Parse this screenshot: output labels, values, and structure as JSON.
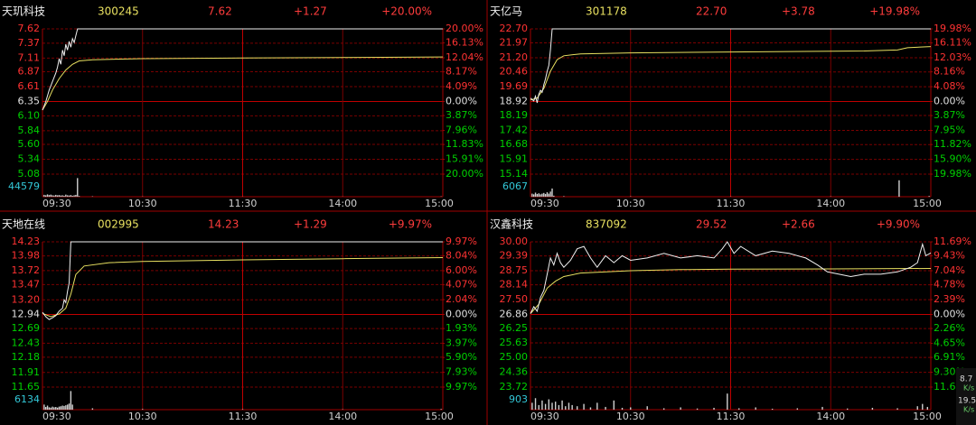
{
  "chart_data": [
    {
      "type": "line",
      "header": {
        "name": "天玑科技",
        "code": "300245",
        "price": "7.62",
        "change": "+1.27",
        "change_pct": "+20.00%"
      },
      "xlim": [
        0,
        240
      ],
      "xticks": [
        {
          "value": 0,
          "label": "09:30"
        },
        {
          "value": 60,
          "label": "10:30"
        },
        {
          "value": 120,
          "label": "11:30"
        },
        {
          "value": 180,
          "label": "14:00"
        },
        {
          "value": 240,
          "label": "15:00"
        }
      ],
      "ylim": [
        5.08,
        7.62
      ],
      "yticks": [
        7.62,
        7.37,
        7.11,
        6.87,
        6.61,
        6.35,
        {
          "value": 6.1,
          "label": "6.10"
        },
        5.84,
        {
          "value": 5.6,
          "label": "5.60"
        },
        5.34,
        5.08
      ],
      "y2lim": [
        -20,
        20
      ],
      "y2ticks": [
        {
          "value": 20,
          "label": "20.00%"
        },
        {
          "value": 16.13,
          "label": "16.13%"
        },
        {
          "value": 12.04,
          "label": "12.04%"
        },
        {
          "value": 8.17,
          "label": "8.17%"
        },
        {
          "value": 4.09,
          "label": "4.09%"
        },
        {
          "value": 0,
          "label": "0.00%"
        },
        {
          "value": -3.87,
          "label": "3.87%"
        },
        {
          "value": -7.96,
          "label": "7.96%"
        },
        {
          "value": -11.83,
          "label": "11.83%"
        },
        {
          "value": -15.91,
          "label": "15.91%"
        },
        {
          "value": -20,
          "label": "20.00%"
        }
      ],
      "price": {
        "color": "#f0f0f0",
        "x": [
          0,
          2,
          4,
          6,
          8,
          9,
          10,
          11,
          12,
          13,
          14,
          15,
          16,
          17,
          18,
          19,
          20,
          21,
          240
        ],
        "values": [
          6.2,
          6.35,
          6.55,
          6.7,
          6.85,
          6.95,
          7.1,
          7.0,
          7.25,
          7.15,
          7.35,
          7.25,
          7.4,
          7.3,
          7.45,
          7.38,
          7.5,
          7.62,
          7.62
        ]
      },
      "average": {
        "color": "#e8e060",
        "x": [
          0,
          3,
          6,
          10,
          14,
          18,
          22,
          30,
          60,
          120,
          180,
          240
        ],
        "values": [
          6.2,
          6.35,
          6.55,
          6.75,
          6.9,
          7.0,
          7.06,
          7.08,
          7.1,
          7.11,
          7.12,
          7.13
        ]
      },
      "volume": {
        "color": "#d0d0d0",
        "ylim": [
          0,
          44579
        ],
        "yticks": [
          44579
        ],
        "x": [
          1,
          2,
          3,
          4,
          5,
          6,
          7,
          8,
          9,
          10,
          11,
          12,
          13,
          14,
          15,
          16,
          17,
          18,
          19,
          20,
          21,
          22,
          30,
          60,
          120,
          180,
          239
        ],
        "values": [
          4000,
          3000,
          5000,
          3500,
          4500,
          3000,
          2500,
          4000,
          3000,
          3500,
          2500,
          3000,
          2000,
          4500,
          3000,
          2500,
          3500,
          2000,
          3000,
          4000,
          40000,
          1500,
          800,
          500,
          400,
          300,
          600
        ]
      }
    },
    {
      "type": "line",
      "header": {
        "name": "天亿马",
        "code": "301178",
        "price": "22.70",
        "change": "+3.78",
        "change_pct": "+19.98%"
      },
      "xlim": [
        0,
        240
      ],
      "xticks": [
        {
          "value": 0,
          "label": "09:30"
        },
        {
          "value": 60,
          "label": "10:30"
        },
        {
          "value": 120,
          "label": "11:30"
        },
        {
          "value": 180,
          "label": "14:00"
        },
        {
          "value": 240,
          "label": "15:00"
        }
      ],
      "ylim": [
        15.14,
        22.7
      ],
      "yticks": [
        {
          "value": 22.7,
          "label": "22.70"
        },
        21.97,
        {
          "value": 21.2,
          "label": "21.20"
        },
        20.46,
        19.69,
        18.92,
        18.19,
        17.42,
        16.68,
        15.91,
        15.14
      ],
      "y2lim": [
        -19.98,
        19.98
      ],
      "y2ticks": [
        {
          "value": 19.98,
          "label": "19.98%"
        },
        {
          "value": 16.11,
          "label": "16.11%"
        },
        {
          "value": 12.03,
          "label": "12.03%"
        },
        {
          "value": 8.16,
          "label": "8.16%"
        },
        {
          "value": 4.08,
          "label": "4.08%"
        },
        {
          "value": 0,
          "label": "0.00%"
        },
        {
          "value": -3.87,
          "label": "3.87%"
        },
        {
          "value": -7.95,
          "label": "7.95%"
        },
        {
          "value": -11.82,
          "label": "11.82%"
        },
        {
          "value": -15.9,
          "label": "15.90%"
        },
        {
          "value": -19.98,
          "label": "19.98%"
        }
      ],
      "price": {
        "color": "#f0f0f0",
        "x": [
          0,
          2,
          3,
          4,
          5,
          6,
          7,
          8,
          9,
          10,
          11,
          12,
          13,
          240
        ],
        "values": [
          19.1,
          18.95,
          19.2,
          18.85,
          19.3,
          19.5,
          19.4,
          19.8,
          20.1,
          20.5,
          20.8,
          21.6,
          22.7,
          22.7
        ]
      },
      "average": {
        "color": "#e8e060",
        "x": [
          0,
          4,
          8,
          12,
          16,
          20,
          30,
          60,
          120,
          200,
          220,
          226,
          240
        ],
        "values": [
          19.0,
          19.1,
          19.6,
          20.5,
          21.1,
          21.3,
          21.4,
          21.45,
          21.5,
          21.55,
          21.6,
          21.72,
          21.78
        ]
      },
      "volume": {
        "color": "#d0d0d0",
        "ylim": [
          0,
          6067
        ],
        "yticks": [
          6067
        ],
        "x": [
          1,
          2,
          3,
          4,
          5,
          6,
          7,
          8,
          9,
          10,
          11,
          12,
          13,
          14,
          20,
          60,
          120,
          180,
          221,
          239
        ],
        "values": [
          900,
          700,
          1200,
          800,
          1000,
          700,
          900,
          1100,
          800,
          1300,
          900,
          1500,
          2400,
          300,
          150,
          100,
          80,
          80,
          4800,
          200
        ]
      }
    },
    {
      "type": "line",
      "header": {
        "name": "天地在线",
        "code": "002995",
        "price": "14.23",
        "change": "+1.29",
        "change_pct": "+9.97%"
      },
      "xlim": [
        0,
        240
      ],
      "xticks": [
        {
          "value": 0,
          "label": "09:30"
        },
        {
          "value": 60,
          "label": "10:30"
        },
        {
          "value": 120,
          "label": "11:30"
        },
        {
          "value": 180,
          "label": "14:00"
        },
        {
          "value": 240,
          "label": "15:00"
        }
      ],
      "ylim": [
        11.65,
        14.23
      ],
      "yticks": [
        14.23,
        13.98,
        13.72,
        13.47,
        {
          "value": 13.2,
          "label": "13.20"
        },
        12.94,
        12.69,
        12.43,
        12.18,
        11.91,
        11.65
      ],
      "y2lim": [
        -9.97,
        9.97
      ],
      "y2ticks": [
        {
          "value": 9.97,
          "label": "9.97%"
        },
        {
          "value": 8.04,
          "label": "8.04%"
        },
        {
          "value": 6,
          "label": "6.00%"
        },
        {
          "value": 4.07,
          "label": "4.07%"
        },
        {
          "value": 2.04,
          "label": "2.04%"
        },
        {
          "value": 0,
          "label": "0.00%"
        },
        {
          "value": -1.93,
          "label": "1.93%"
        },
        {
          "value": -3.97,
          "label": "3.97%"
        },
        {
          "value": -5.9,
          "label": "5.90%"
        },
        {
          "value": -7.93,
          "label": "7.93%"
        },
        {
          "value": -9.97,
          "label": "9.97%"
        }
      ],
      "price": {
        "color": "#f0f0f0",
        "x": [
          0,
          2,
          4,
          6,
          8,
          10,
          12,
          13,
          14,
          15,
          16,
          17,
          240
        ],
        "values": [
          12.98,
          12.9,
          12.85,
          12.88,
          12.92,
          13.0,
          13.05,
          13.2,
          13.15,
          13.35,
          13.5,
          14.23,
          14.23
        ]
      },
      "average": {
        "color": "#e8e060",
        "x": [
          0,
          5,
          10,
          14,
          17,
          20,
          25,
          40,
          60,
          120,
          180,
          240
        ],
        "values": [
          12.96,
          12.9,
          12.95,
          13.05,
          13.3,
          13.65,
          13.8,
          13.86,
          13.88,
          13.91,
          13.93,
          13.95
        ]
      },
      "volume": {
        "color": "#d0d0d0",
        "ylim": [
          0,
          6134
        ],
        "yticks": [
          6134
        ],
        "x": [
          1,
          2,
          3,
          4,
          5,
          6,
          7,
          8,
          9,
          10,
          11,
          12,
          13,
          14,
          15,
          16,
          17,
          18,
          30,
          60,
          120,
          180,
          239
        ],
        "values": [
          1500,
          800,
          1200,
          700,
          600,
          900,
          700,
          800,
          600,
          900,
          1000,
          1200,
          1100,
          1300,
          1500,
          1800,
          5500,
          1500,
          400,
          200,
          150,
          100,
          200
        ]
      }
    },
    {
      "type": "line",
      "header": {
        "name": "汉鑫科技",
        "code": "837092",
        "price": "29.52",
        "change": "+2.66",
        "change_pct": "+9.90%"
      },
      "xlim": [
        0,
        240
      ],
      "xticks": [
        {
          "value": 0,
          "label": "09:30"
        },
        {
          "value": 60,
          "label": "10:30"
        },
        {
          "value": 120,
          "label": "11:30"
        },
        {
          "value": 180,
          "label": "14:00"
        },
        {
          "value": 240,
          "label": "15:00"
        }
      ],
      "ylim": [
        23.72,
        30
      ],
      "yticks": [
        {
          "value": 30,
          "label": "30.00"
        },
        29.39,
        28.75,
        28.14,
        {
          "value": 27.5,
          "label": "27.50"
        },
        26.86,
        26.25,
        25.63,
        {
          "value": 25,
          "label": "25.00"
        },
        24.36,
        23.72
      ],
      "y2lim": [
        -11.69,
        11.69
      ],
      "y2ticks": [
        {
          "value": 11.69,
          "label": "11.69%"
        },
        {
          "value": 9.43,
          "label": "9.43%"
        },
        {
          "value": 7.04,
          "label": "7.04%"
        },
        {
          "value": 4.78,
          "label": "4.78%"
        },
        {
          "value": 2.39,
          "label": "2.39%"
        },
        {
          "value": 0,
          "label": "0.00%"
        },
        {
          "value": -2.26,
          "label": "2.26%"
        },
        {
          "value": -4.65,
          "label": "4.65%"
        },
        {
          "value": -6.91,
          "label": "6.91%"
        },
        {
          "value": -9.3,
          "label": "9.30%"
        },
        {
          "value": -11.69,
          "label": "11.69%"
        }
      ],
      "price": {
        "color": "#f0f0f0",
        "x": [
          0,
          2,
          4,
          6,
          8,
          10,
          12,
          14,
          16,
          18,
          20,
          24,
          28,
          32,
          36,
          40,
          45,
          50,
          55,
          60,
          70,
          80,
          90,
          100,
          110,
          115,
          118,
          122,
          126,
          135,
          145,
          155,
          165,
          172,
          178,
          185,
          192,
          200,
          210,
          220,
          228,
          232,
          235,
          237,
          240
        ],
        "values": [
          26.9,
          27.2,
          27.0,
          27.6,
          27.9,
          28.6,
          29.3,
          29.0,
          29.5,
          29.1,
          28.9,
          29.2,
          29.7,
          29.8,
          29.3,
          28.9,
          29.4,
          29.1,
          29.4,
          29.2,
          29.3,
          29.5,
          29.3,
          29.4,
          29.3,
          29.7,
          30.0,
          29.5,
          29.8,
          29.4,
          29.6,
          29.5,
          29.3,
          29.0,
          28.7,
          28.6,
          28.5,
          28.6,
          28.6,
          28.7,
          28.9,
          29.1,
          29.9,
          29.4,
          29.52
        ]
      },
      "average": {
        "color": "#e8e060",
        "x": [
          0,
          5,
          10,
          15,
          20,
          30,
          60,
          90,
          120,
          180,
          240
        ],
        "values": [
          26.9,
          27.3,
          28.0,
          28.3,
          28.5,
          28.65,
          28.75,
          28.8,
          28.82,
          28.83,
          28.85
        ]
      },
      "volume": {
        "color": "#d0d0d0",
        "ylim": [
          0,
          903
        ],
        "yticks": [
          903
        ],
        "x": [
          1,
          3,
          5,
          7,
          9,
          11,
          13,
          15,
          17,
          19,
          21,
          23,
          25,
          28,
          32,
          36,
          40,
          45,
          50,
          55,
          60,
          70,
          80,
          90,
          100,
          110,
          118,
          125,
          135,
          145,
          160,
          175,
          190,
          205,
          220,
          232,
          235,
          238
        ],
        "values": [
          300,
          500,
          200,
          400,
          250,
          450,
          300,
          350,
          200,
          400,
          150,
          300,
          200,
          150,
          250,
          100,
          300,
          120,
          400,
          80,
          100,
          150,
          60,
          100,
          50,
          80,
          700,
          60,
          100,
          40,
          60,
          120,
          50,
          80,
          60,
          150,
          250,
          120
        ]
      }
    }
  ],
  "status": {
    "up": "8.7",
    "up_unit": "K/s",
    "down": "19.5",
    "down_unit": "K/s"
  }
}
